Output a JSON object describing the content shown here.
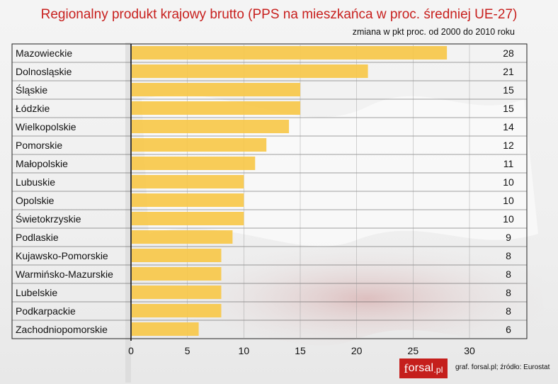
{
  "chart_data": {
    "type": "bar",
    "orientation": "horizontal",
    "title": "Regionalny produkt krajowy brutto (PPS na mieszkańca w proc. średniej UE-27)",
    "subtitle": "zmiana w pkt proc. od 2000 do 2010 roku",
    "categories": [
      "Mazowieckie",
      "Dolnosląskie",
      "Śląskie",
      "Łódzkie",
      "Wielkopolskie",
      "Pomorskie",
      "Małopolskie",
      "Lubuskie",
      "Opolskie",
      "Świetokrzyskie",
      "Podlaskie",
      "Kujawsko-Pomorskie",
      "Warmińsko-Mazurskie",
      "Lubelskie",
      "Podkarpackie",
      "Zachodniopomorskie"
    ],
    "values": [
      28,
      21,
      15,
      15,
      14,
      12,
      11,
      10,
      10,
      10,
      9,
      8,
      8,
      8,
      8,
      6
    ],
    "value_labels": [
      "28",
      "21",
      "15",
      "15",
      "14",
      "12",
      "11",
      "10",
      "10",
      "10",
      "9",
      "8",
      "8",
      "8",
      "8",
      "6"
    ],
    "x_ticks": [
      "0",
      "5",
      "10",
      "15",
      "20",
      "25",
      "30"
    ],
    "xlim": [
      0,
      30
    ],
    "grid": true,
    "bar_color": "#f7c84a",
    "title_color": "#c8201e"
  },
  "branding": {
    "logo_prefix": "f",
    "logo_circle": "o",
    "logo_rest": "rsal",
    "logo_suffix": ".pl",
    "logo_color": "#c51f1c"
  },
  "source_text": "graf. forsal.pl;  źródło: Eurostat"
}
